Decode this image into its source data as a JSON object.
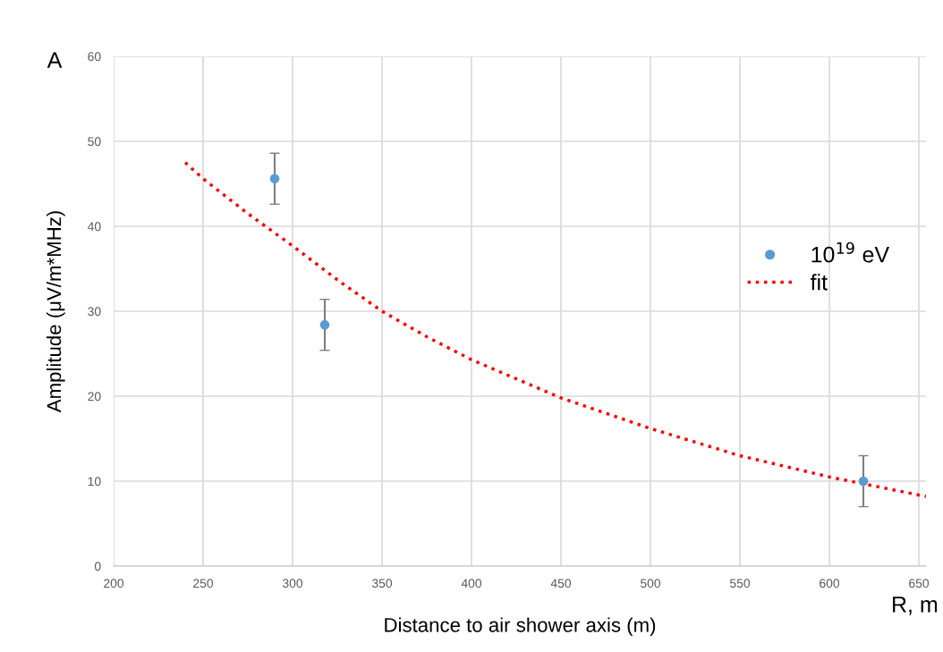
{
  "chart_data": {
    "type": "scatter",
    "xlabel": "Distance to air shower axis (m)",
    "ylabel": "Amplitude (μV/m*MHz)",
    "annotations": [
      "A",
      "R, m"
    ],
    "series": [
      {
        "name": "10$^{19}$ eV",
        "color": "#5b9bd5",
        "x": [
          290,
          318,
          619
        ],
        "values": [
          45.6,
          28.4,
          10
        ],
        "errors": [
          3,
          3,
          3
        ],
        "marker": "circle"
      },
      {
        "name": "fit",
        "type": "line",
        "color": "#ff0000",
        "line_style": "dotted",
        "marker": "none",
        "x": [
          240,
          250,
          275,
          300,
          325,
          350,
          375,
          400,
          450,
          500,
          550,
          600,
          654
        ],
        "values": [
          47.5,
          45.6,
          41.5,
          37.7,
          33.7,
          30,
          27,
          24.3,
          19.8,
          16.2,
          13,
          10.5,
          8.2
        ]
      }
    ],
    "xlim": [
      200,
      654
    ],
    "xticks": [
      200,
      250,
      300,
      350,
      400,
      450,
      500,
      550,
      600,
      650
    ],
    "ylim": [
      0,
      60
    ],
    "yticks": [
      0,
      10,
      20,
      30,
      40,
      50,
      60
    ],
    "grid": true,
    "legend": "right"
  }
}
